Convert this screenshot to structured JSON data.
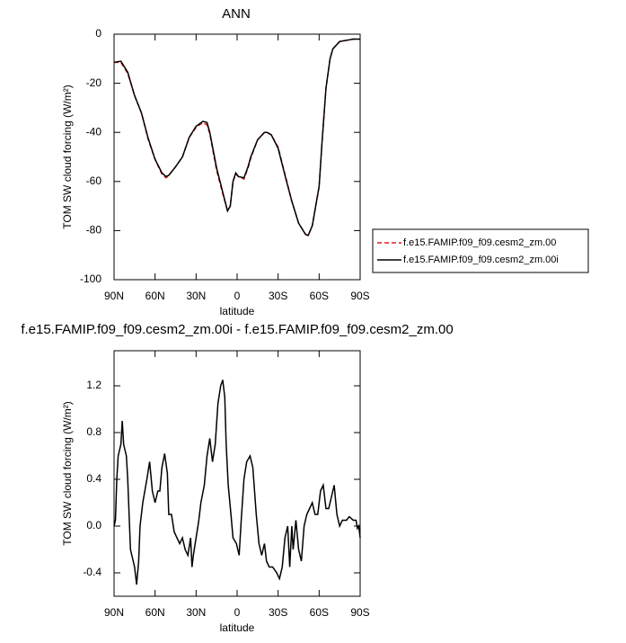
{
  "chart_data": [
    {
      "type": "line",
      "title": "ANN",
      "x_label": "latitude",
      "y_label": "TOM SW cloud forcing (W/m²)",
      "x": [
        90,
        85,
        80,
        75,
        70,
        65,
        60,
        55,
        52,
        50,
        45,
        40,
        35,
        30,
        25,
        22,
        20,
        15,
        10,
        7,
        5,
        3,
        1,
        -1,
        -5,
        -8,
        -10,
        -15,
        -20,
        -22,
        -25,
        -30,
        -35,
        -40,
        -45,
        -50,
        -52,
        -55,
        -60,
        -62,
        -65,
        -68,
        -70,
        -75,
        -80,
        -85,
        -90
      ],
      "series": [
        {
          "name": "f.e15.FAMIP.f09_f09.cesm2_zm.00",
          "color": "#e41a1c",
          "style": "dashed",
          "values": [
            -11.5,
            -11.5,
            -16,
            -25,
            -32,
            -43,
            -51,
            -57,
            -58.5,
            -57.5,
            -54,
            -50,
            -42,
            -38,
            -36,
            -37,
            -40.5,
            -55.5,
            -66,
            -72,
            -70,
            -60,
            -57,
            -58,
            -59,
            -54.5,
            -50.5,
            -43,
            -40,
            -40,
            -41,
            -46,
            -57,
            -68,
            -77,
            -81.5,
            -82,
            -78,
            -62,
            -45,
            -22,
            -10,
            -6,
            -3,
            -2.5,
            -2,
            -2
          ]
        },
        {
          "name": "f.e15.FAMIP.f09_f09.cesm2_zm.00i",
          "color": "#000000",
          "style": "solid",
          "values": [
            -11.5,
            -11,
            -15.5,
            -25,
            -32,
            -42.5,
            -51,
            -56.5,
            -58,
            -57.5,
            -54,
            -50,
            -42,
            -37.5,
            -35.5,
            -36,
            -40,
            -54.5,
            -65.5,
            -72,
            -70,
            -60,
            -56.5,
            -58,
            -58.5,
            -54,
            -50,
            -43,
            -40,
            -40,
            -41,
            -46.5,
            -57.5,
            -68,
            -77,
            -81.5,
            -82,
            -78,
            -62,
            -45,
            -22,
            -10,
            -6,
            -3,
            -2.5,
            -2,
            -2
          ]
        }
      ],
      "xlim": [
        90,
        -90
      ],
      "xticks": [
        {
          "value": 90,
          "label": "90N"
        },
        {
          "value": 60,
          "label": "60N"
        },
        {
          "value": 30,
          "label": "30N"
        },
        0,
        {
          "value": -30,
          "label": "30S"
        },
        {
          "value": -60,
          "label": "60S"
        },
        {
          "value": -90,
          "label": "90S"
        }
      ],
      "ylim": [
        -100,
        0
      ],
      "yticks": [
        -100,
        -80,
        -60,
        -40,
        -20,
        0
      ],
      "legend": "right"
    },
    {
      "type": "line",
      "title": "f.e15.FAMIP.f09_f09.cesm2_zm.00i - f.e15.FAMIP.f09_f09.cesm2_zm.00",
      "x_label": "latitude",
      "y_label": "TOM SW cloud forcing (W/m²)",
      "x": [
        90,
        89,
        88,
        87,
        85,
        84,
        83,
        81,
        80,
        79,
        78,
        76,
        75,
        73.5,
        72,
        71,
        69,
        66,
        64,
        62,
        60,
        58,
        56.5,
        55,
        53,
        51,
        50,
        48,
        46,
        44,
        42,
        40,
        38,
        36,
        34,
        33,
        32,
        30,
        28,
        26.5,
        24,
        22,
        20,
        18,
        16,
        14,
        12,
        10.5,
        9,
        8,
        6.5,
        4.5,
        3,
        0.5,
        -1.5,
        -3,
        -5,
        -7,
        -9.5,
        -11.5,
        -14,
        -16,
        -18,
        -20,
        -21.5,
        -23.5,
        -26,
        -29,
        -31,
        -33,
        -35,
        -37,
        -38.5,
        -40,
        -41,
        -43,
        -45,
        -47,
        -49,
        -51,
        -53,
        -55,
        -57,
        -59,
        -61,
        -63,
        -65,
        -67,
        -69,
        -71,
        -73,
        -75,
        -77,
        -80,
        -82,
        -85,
        -87,
        -88,
        -89,
        -90
      ],
      "series": [
        {
          "color": "#000000",
          "style": "solid",
          "values": [
            0.0,
            0.05,
            0.4,
            0.6,
            0.7,
            0.9,
            0.7,
            0.6,
            0.4,
            0.1,
            -0.2,
            -0.3,
            -0.35,
            -0.5,
            -0.3,
            0.0,
            0.2,
            0.4,
            0.55,
            0.3,
            0.2,
            0.3,
            0.3,
            0.5,
            0.62,
            0.45,
            0.1,
            0.1,
            -0.05,
            -0.1,
            -0.15,
            -0.1,
            -0.2,
            -0.25,
            -0.1,
            -0.35,
            -0.25,
            -0.1,
            0.05,
            0.2,
            0.35,
            0.6,
            0.75,
            0.55,
            0.7,
            1.05,
            1.2,
            1.25,
            1.1,
            0.7,
            0.35,
            0.1,
            -0.1,
            -0.15,
            -0.25,
            0.05,
            0.4,
            0.55,
            0.6,
            0.5,
            0.1,
            -0.15,
            -0.25,
            -0.15,
            -0.3,
            -0.35,
            -0.35,
            -0.4,
            -0.45,
            -0.35,
            -0.1,
            0.0,
            -0.35,
            0.0,
            -0.2,
            0.05,
            -0.2,
            -0.3,
            0.0,
            0.1,
            0.15,
            0.2,
            0.1,
            0.1,
            0.3,
            0.35,
            0.15,
            0.15,
            0.25,
            0.35,
            0.1,
            0.0,
            0.05,
            0.05,
            0.08,
            0.05,
            0.05,
            -0.02,
            0.0,
            -0.1
          ]
        }
      ],
      "xlim": [
        90,
        -90
      ],
      "xticks": [
        {
          "value": 90,
          "label": "90N"
        },
        {
          "value": 60,
          "label": "60N"
        },
        {
          "value": 30,
          "label": "30N"
        },
        0,
        {
          "value": -30,
          "label": "30S"
        },
        {
          "value": -60,
          "label": "60S"
        },
        {
          "value": -90,
          "label": "90S"
        }
      ],
      "ylim": [
        -0.6,
        1.5
      ],
      "yticks": [
        -0.4,
        {
          "value": 0,
          "label": "0.0"
        },
        0.4,
        0.8,
        1.2
      ]
    }
  ]
}
